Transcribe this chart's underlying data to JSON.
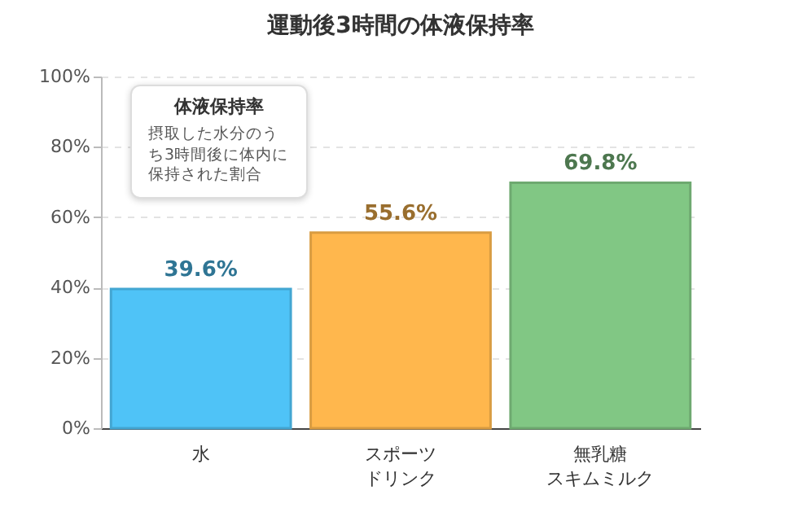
{
  "chart_data": {
    "type": "bar",
    "title": "運動後3時間の体液保持率",
    "categories": [
      "水",
      "スポーツドリンク",
      "無乳糖スキムミルク"
    ],
    "values": [
      39.6,
      55.6,
      69.8
    ],
    "colors": [
      "#4fc3f7",
      "#ffb74d",
      "#81c784"
    ],
    "value_labels": [
      "39.6%",
      "55.6%",
      "69.8%"
    ],
    "ylim": [
      0,
      100
    ],
    "yticks": [
      {
        "value": 0,
        "label": "0%"
      },
      {
        "value": 20,
        "label": "20%"
      },
      {
        "value": 40,
        "label": "40%"
      },
      {
        "value": 60,
        "label": "60%"
      },
      {
        "value": 80,
        "label": "80%"
      },
      {
        "value": 100,
        "label": "100%"
      }
    ],
    "grid": "y",
    "annotations": [
      "体液保持率",
      "摂取した水分のうち3時間後に体内に保持された割合"
    ]
  }
}
